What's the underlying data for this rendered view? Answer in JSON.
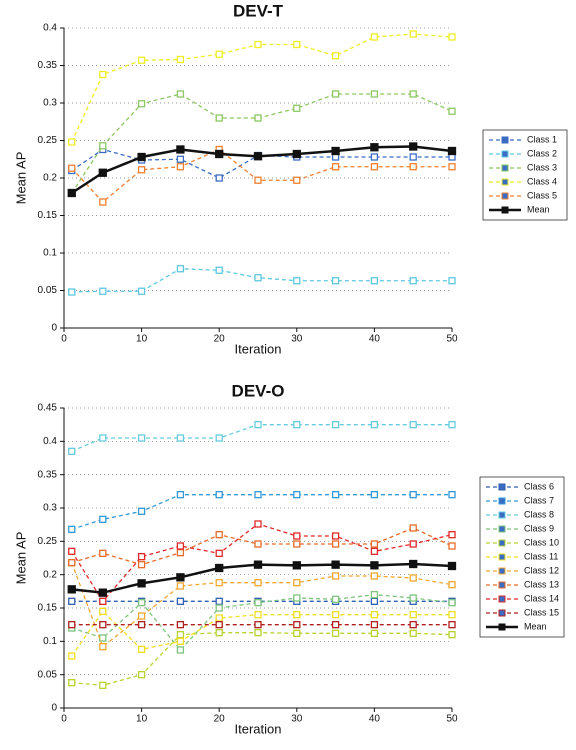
{
  "chart_data": [
    {
      "type": "line",
      "title": "DEV-T",
      "x_label": "Iteration",
      "y_label": "Mean AP",
      "x": [
        1,
        5,
        10,
        15,
        20,
        25,
        30,
        35,
        40,
        45,
        50
      ],
      "xlim": [
        0,
        50
      ],
      "xticks": [
        0,
        10,
        20,
        30,
        40,
        50
      ],
      "ylim": [
        0,
        0.4
      ],
      "yticks": [
        0,
        0.05,
        0.1,
        0.15,
        0.2,
        0.25,
        0.3,
        0.35,
        0.4
      ],
      "grid": true,
      "legend": "right",
      "series": [
        {
          "name": "Class 1",
          "color": "#3a6cc4",
          "linestyle": "dashed",
          "values": [
            0.21,
            0.238,
            0.224,
            0.225,
            0.2,
            0.23,
            0.228,
            0.228,
            0.228,
            0.228,
            0.228
          ]
        },
        {
          "name": "Class 2",
          "color": "#5cc8e0",
          "linestyle": "dashed",
          "values": [
            0.048,
            0.049,
            0.049,
            0.079,
            0.077,
            0.067,
            0.063,
            0.063,
            0.063,
            0.063,
            0.063
          ]
        },
        {
          "name": "Class 3",
          "color": "#8cc862",
          "linestyle": "dashed",
          "values": [
            0.18,
            0.243,
            0.299,
            0.312,
            0.28,
            0.28,
            0.293,
            0.312,
            0.312,
            0.312,
            0.289
          ]
        },
        {
          "name": "Class 4",
          "color": "#eeee22",
          "linestyle": "dashed",
          "values": [
            0.248,
            0.338,
            0.357,
            0.358,
            0.365,
            0.378,
            0.378,
            0.363,
            0.388,
            0.392,
            0.388
          ]
        },
        {
          "name": "Class 5",
          "color": "#f08030",
          "linestyle": "dashed",
          "values": [
            0.213,
            0.168,
            0.211,
            0.215,
            0.238,
            0.197,
            0.197,
            0.215,
            0.215,
            0.215,
            0.215
          ]
        },
        {
          "name": "Mean",
          "color": "#111111",
          "linestyle": "solid",
          "values": [
            0.18,
            0.207,
            0.228,
            0.238,
            0.232,
            0.229,
            0.232,
            0.236,
            0.241,
            0.242,
            0.236
          ]
        }
      ]
    },
    {
      "type": "line",
      "title": "DEV-O",
      "x_label": "Iteration",
      "y_label": "Mean AP",
      "x": [
        1,
        5,
        10,
        15,
        20,
        25,
        30,
        35,
        40,
        45,
        50
      ],
      "xlim": [
        0,
        50
      ],
      "xticks": [
        0,
        10,
        20,
        30,
        40,
        50
      ],
      "ylim": [
        0,
        0.45
      ],
      "yticks": [
        0,
        0.05,
        0.1,
        0.15,
        0.2,
        0.25,
        0.3,
        0.35,
        0.4,
        0.45
      ],
      "grid": true,
      "legend": "right",
      "series": [
        {
          "name": "Class 6",
          "color": "#2f5fb0",
          "linestyle": "dashed",
          "values": [
            0.16,
            0.16,
            0.16,
            0.16,
            0.16,
            0.16,
            0.16,
            0.16,
            0.16,
            0.16,
            0.16
          ]
        },
        {
          "name": "Class 7",
          "color": "#3399d8",
          "linestyle": "dashed",
          "values": [
            0.268,
            0.283,
            0.295,
            0.32,
            0.32,
            0.32,
            0.32,
            0.32,
            0.32,
            0.32,
            0.32
          ]
        },
        {
          "name": "Class 8",
          "color": "#66ccdd",
          "linestyle": "dashed",
          "values": [
            0.385,
            0.405,
            0.405,
            0.405,
            0.405,
            0.425,
            0.425,
            0.425,
            0.425,
            0.425,
            0.425
          ]
        },
        {
          "name": "Class 9",
          "color": "#7dc47d",
          "linestyle": "dashed",
          "values": [
            0.12,
            0.105,
            0.158,
            0.087,
            0.15,
            0.158,
            0.165,
            0.163,
            0.17,
            0.165,
            0.158
          ]
        },
        {
          "name": "Class 10",
          "color": "#b8d430",
          "linestyle": "dashed",
          "values": [
            0.038,
            0.034,
            0.05,
            0.11,
            0.113,
            0.113,
            0.112,
            0.112,
            0.112,
            0.112,
            0.11
          ]
        },
        {
          "name": "Class 11",
          "color": "#f0e020",
          "linestyle": "dashed",
          "values": [
            0.078,
            0.145,
            0.088,
            0.1,
            0.135,
            0.14,
            0.14,
            0.14,
            0.14,
            0.14,
            0.14
          ]
        },
        {
          "name": "Class 12",
          "color": "#f0a830",
          "linestyle": "dashed",
          "values": [
            0.218,
            0.092,
            0.138,
            0.183,
            0.188,
            0.188,
            0.188,
            0.198,
            0.198,
            0.195,
            0.185
          ]
        },
        {
          "name": "Class 13",
          "color": "#e86a28",
          "linestyle": "dashed",
          "values": [
            0.218,
            0.232,
            0.215,
            0.233,
            0.26,
            0.246,
            0.246,
            0.246,
            0.246,
            0.27,
            0.243
          ]
        },
        {
          "name": "Class 14",
          "color": "#e02828",
          "linestyle": "dashed",
          "values": [
            0.235,
            0.16,
            0.227,
            0.243,
            0.232,
            0.276,
            0.258,
            0.258,
            0.235,
            0.246,
            0.26
          ]
        },
        {
          "name": "Class 15",
          "color": "#b02020",
          "linestyle": "dashed",
          "values": [
            0.125,
            0.125,
            0.125,
            0.125,
            0.125,
            0.125,
            0.125,
            0.125,
            0.125,
            0.125,
            0.125
          ]
        },
        {
          "name": "Mean",
          "color": "#111111",
          "linestyle": "solid",
          "values": [
            0.178,
            0.173,
            0.187,
            0.196,
            0.21,
            0.215,
            0.214,
            0.215,
            0.214,
            0.216,
            0.213
          ]
        }
      ]
    }
  ]
}
